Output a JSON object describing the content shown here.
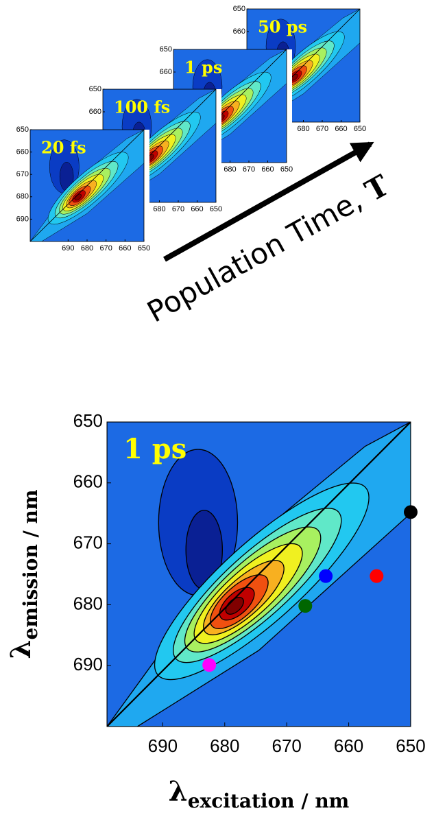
{
  "chart_data": [
    {
      "type": "contour",
      "title": "50 ps",
      "xlim": [
        710,
        650
      ],
      "ylim": [
        650,
        700
      ],
      "xticks": [
        690,
        680,
        670,
        660,
        650
      ],
      "yticks": [
        650,
        660,
        670,
        680,
        690
      ]
    },
    {
      "type": "contour",
      "title": "1 ps",
      "xlim": [
        710,
        650
      ],
      "ylim": [
        650,
        700
      ],
      "xticks": [
        690,
        680,
        670,
        660,
        650
      ],
      "yticks": [
        650,
        660,
        670,
        680,
        690
      ]
    },
    {
      "type": "contour",
      "title": "100 fs",
      "xlim": [
        710,
        650
      ],
      "ylim": [
        650,
        700
      ],
      "xticks": [
        690,
        680,
        670,
        660,
        650
      ],
      "yticks": [
        650,
        660,
        670,
        680,
        690
      ]
    },
    {
      "type": "contour",
      "title": "20 fs",
      "xlim": [
        710,
        650
      ],
      "ylim": [
        650,
        700
      ],
      "xticks": [
        690,
        680,
        670,
        660,
        650
      ],
      "yticks": [
        650,
        660,
        670,
        680,
        690
      ]
    },
    {
      "type": "contour",
      "title": "1 ps",
      "xlim": [
        699,
        650
      ],
      "ylim": [
        650,
        700
      ],
      "xticks": [
        690,
        680,
        670,
        660,
        650
      ],
      "yticks": [
        650,
        660,
        670,
        680,
        690
      ],
      "xlabel": "λ",
      "xlabel_sub": "excitation / nm",
      "ylabel": "λ",
      "ylabel_sub": "emission / nm",
      "points": [
        {
          "color": "#000000",
          "x": 650,
          "y": 664.8
        },
        {
          "color": "#ff0000",
          "x": 655.5,
          "y": 675.3
        },
        {
          "color": "#0000ff",
          "x": 663.7,
          "y": 675.3
        },
        {
          "color": "#006600",
          "x": 667,
          "y": 680.2
        },
        {
          "color": "#ff00ff",
          "x": 682.5,
          "y": 689.9
        }
      ]
    }
  ],
  "annotation": {
    "text": "Population Time,",
    "emphasis": "T"
  }
}
